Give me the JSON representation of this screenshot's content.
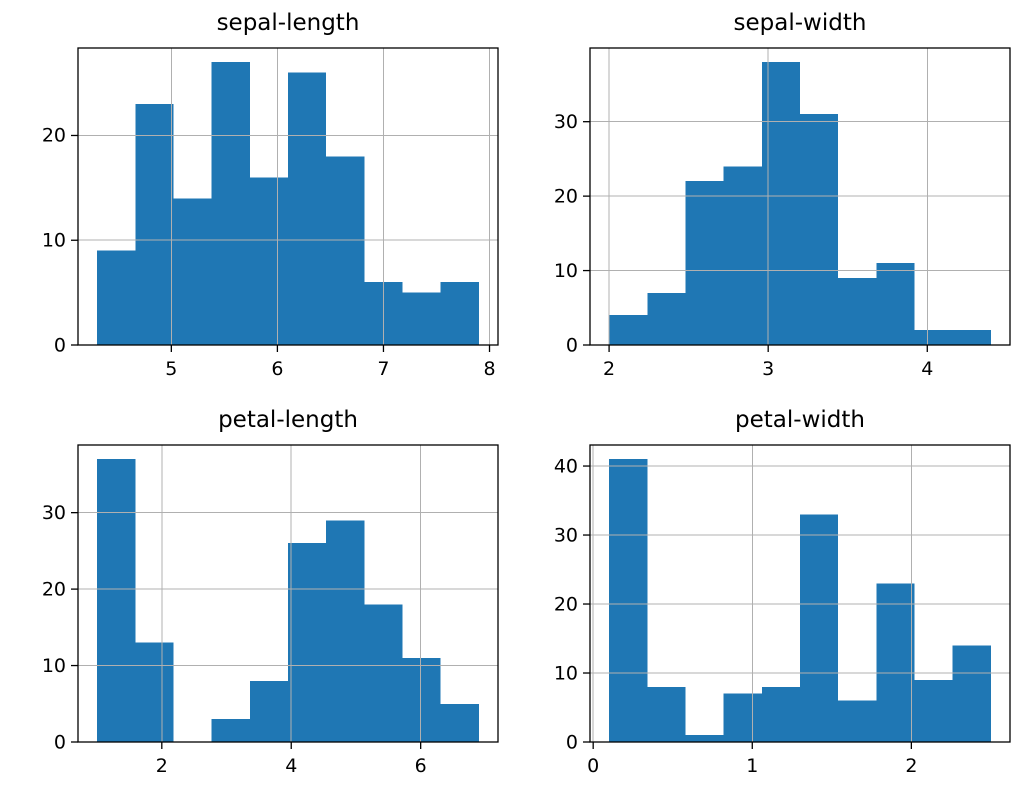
{
  "figure": {
    "background": "#ffffff",
    "bar_color": "#1f77b4",
    "grid_color": "#b0b0b0",
    "axis_color": "#000000",
    "text_color": "#000000",
    "layout": "2x2 subplot grid of histograms, grid lines on, no legend"
  },
  "chart_data": [
    {
      "type": "bar",
      "subtype": "histogram",
      "title": "sepal-length",
      "bin_start": 4.3,
      "bin_width": 0.36,
      "values": [
        9,
        23,
        14,
        27,
        16,
        26,
        18,
        6,
        5,
        6
      ],
      "xticks": [
        5,
        6,
        7,
        8
      ],
      "yticks": [
        0,
        10,
        20
      ],
      "xlim": [
        4.12,
        8.08
      ],
      "ylim": [
        0,
        28.35
      ],
      "grid": true,
      "legend": null
    },
    {
      "type": "bar",
      "subtype": "histogram",
      "title": "sepal-width",
      "bin_start": 2.0,
      "bin_width": 0.24,
      "values": [
        4,
        7,
        22,
        24,
        38,
        31,
        9,
        11,
        2,
        2
      ],
      "xticks": [
        2,
        3,
        4
      ],
      "yticks": [
        0,
        10,
        20,
        30
      ],
      "xlim": [
        1.88,
        4.52
      ],
      "ylim": [
        0,
        39.9
      ],
      "grid": true,
      "legend": null
    },
    {
      "type": "bar",
      "subtype": "histogram",
      "title": "petal-length",
      "bin_start": 1.0,
      "bin_width": 0.59,
      "values": [
        37,
        13,
        0,
        3,
        8,
        26,
        29,
        18,
        11,
        5
      ],
      "xticks": [
        2,
        4,
        6
      ],
      "yticks": [
        0,
        10,
        20,
        30
      ],
      "xlim": [
        0.705,
        7.195
      ],
      "ylim": [
        0,
        38.85
      ],
      "grid": true,
      "legend": null
    },
    {
      "type": "bar",
      "subtype": "histogram",
      "title": "petal-width",
      "bin_start": 0.1,
      "bin_width": 0.24,
      "values": [
        41,
        8,
        1,
        7,
        8,
        33,
        6,
        23,
        9,
        14
      ],
      "xticks": [
        0,
        1,
        2
      ],
      "yticks": [
        0,
        10,
        20,
        30,
        40
      ],
      "xlim": [
        -0.02,
        2.62
      ],
      "ylim": [
        0,
        43.05
      ],
      "grid": true,
      "legend": null
    }
  ]
}
